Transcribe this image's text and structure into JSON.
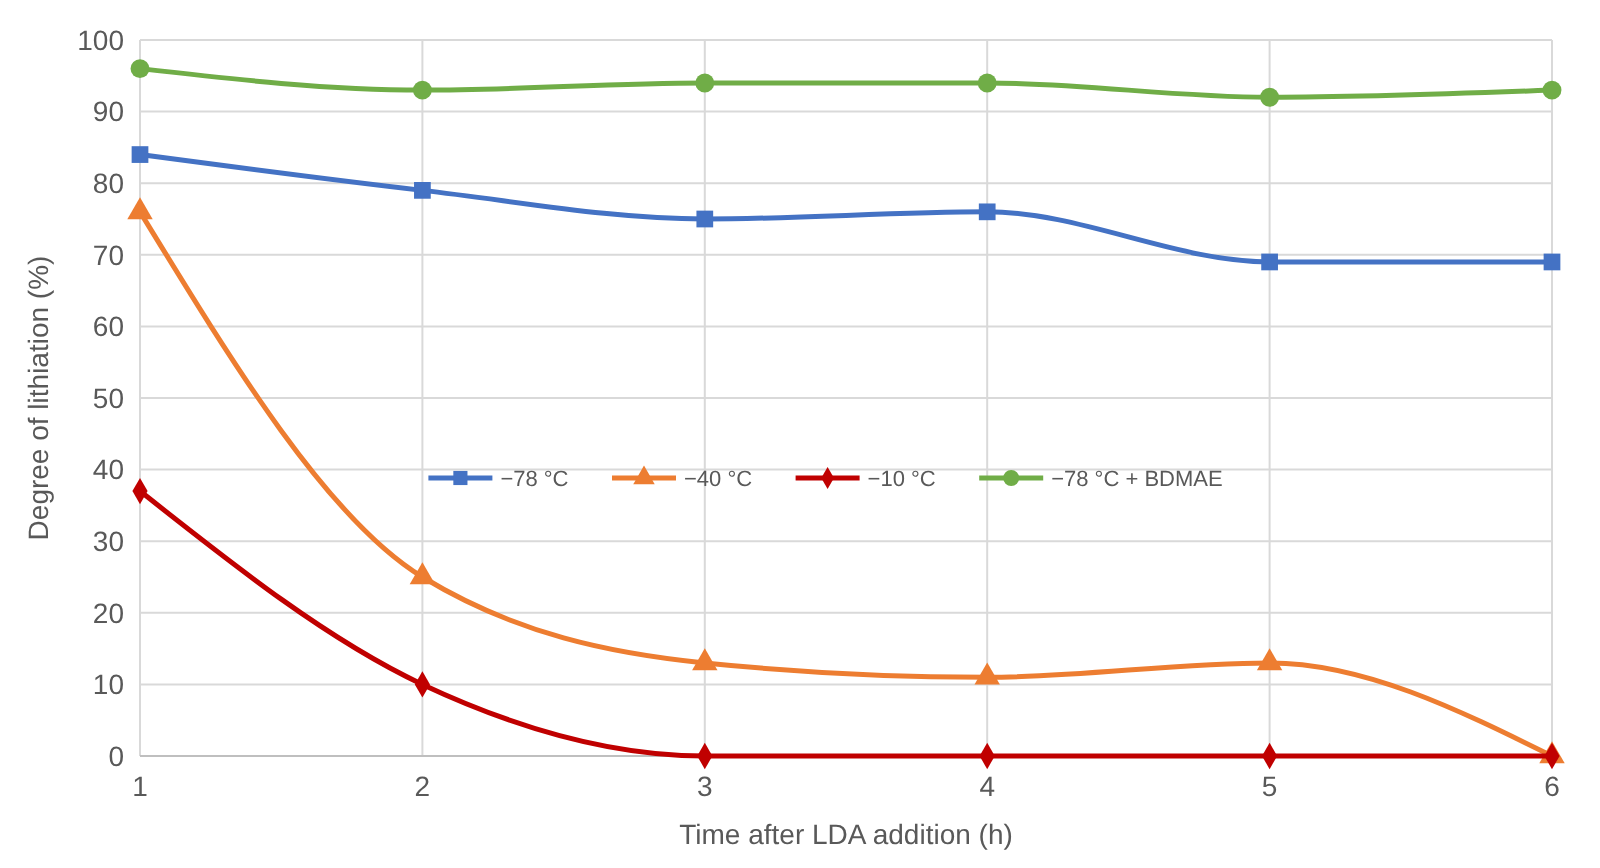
{
  "chart_data": {
    "type": "line",
    "xlabel": "Time after LDA addition (h)",
    "ylabel": "Degree of lithiation (%)",
    "x": [
      1,
      2,
      3,
      4,
      5,
      6
    ],
    "series": [
      {
        "name": "−78 °C",
        "color": "#4472c4",
        "marker": "square",
        "values": [
          84,
          79,
          75,
          76,
          69,
          69
        ]
      },
      {
        "name": "−40 °C",
        "color": "#ed7d31",
        "marker": "triangle",
        "values": [
          76,
          25,
          13,
          11,
          13,
          0
        ]
      },
      {
        "name": "−10 °C",
        "color": "#c00000",
        "marker": "diamond",
        "values": [
          37,
          10,
          0,
          0,
          0,
          0
        ]
      },
      {
        "name": "−78 °C + BDMAE",
        "color": "#70ad47",
        "marker": "circle",
        "values": [
          96,
          93,
          94,
          94,
          92,
          93
        ]
      }
    ],
    "xlim": [
      1,
      6
    ],
    "xticks": [
      1,
      2,
      3,
      4,
      5,
      6
    ],
    "ylim": [
      0,
      100
    ],
    "yticks": [
      0,
      10,
      20,
      30,
      40,
      50,
      60,
      70,
      80,
      90,
      100
    ],
    "grid": true,
    "legend": "center",
    "line_style": "solid"
  }
}
